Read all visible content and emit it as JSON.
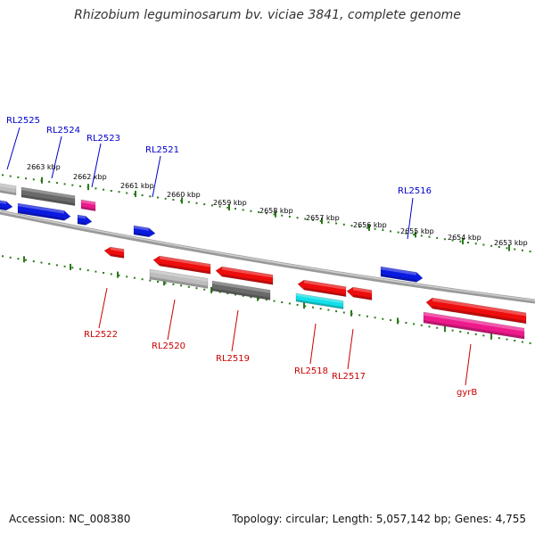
{
  "title": "Rhizobium leguminosarum bv. viciae 3841, complete genome",
  "footer": {
    "accession": "Accession: NC_008380",
    "summary": "Topology: circular; Length: 5,057,142 bp; Genes: 4,755"
  },
  "colors": {
    "forward_label": "#0000cc",
    "reverse_label": "#cc0000",
    "tick": "#2a7a1a",
    "backbone": "#8a8a8a",
    "blue": "#0a1ae0",
    "red": "#ee0d0d",
    "gray": "#6a6a6a",
    "lightgray": "#bdbdbd",
    "magenta": "#ee1a8c",
    "cyan": "#11e0e8"
  },
  "ticks": [
    "2663 kbp",
    "2662 kbp",
    "2661 kbp",
    "2660 kbp",
    "2659 kbp",
    "2658 kbp",
    "2657 kbp",
    "2656 kbp",
    "2655 kbp",
    "2654 kbp",
    "2653 kbp"
  ],
  "forward_labels": [
    "RL2525",
    "RL2524",
    "RL2523",
    "RL2521",
    "RL2516"
  ],
  "reverse_labels": [
    "RL2522",
    "RL2520",
    "RL2519",
    "RL2518",
    "RL2517",
    "gyrB"
  ]
}
